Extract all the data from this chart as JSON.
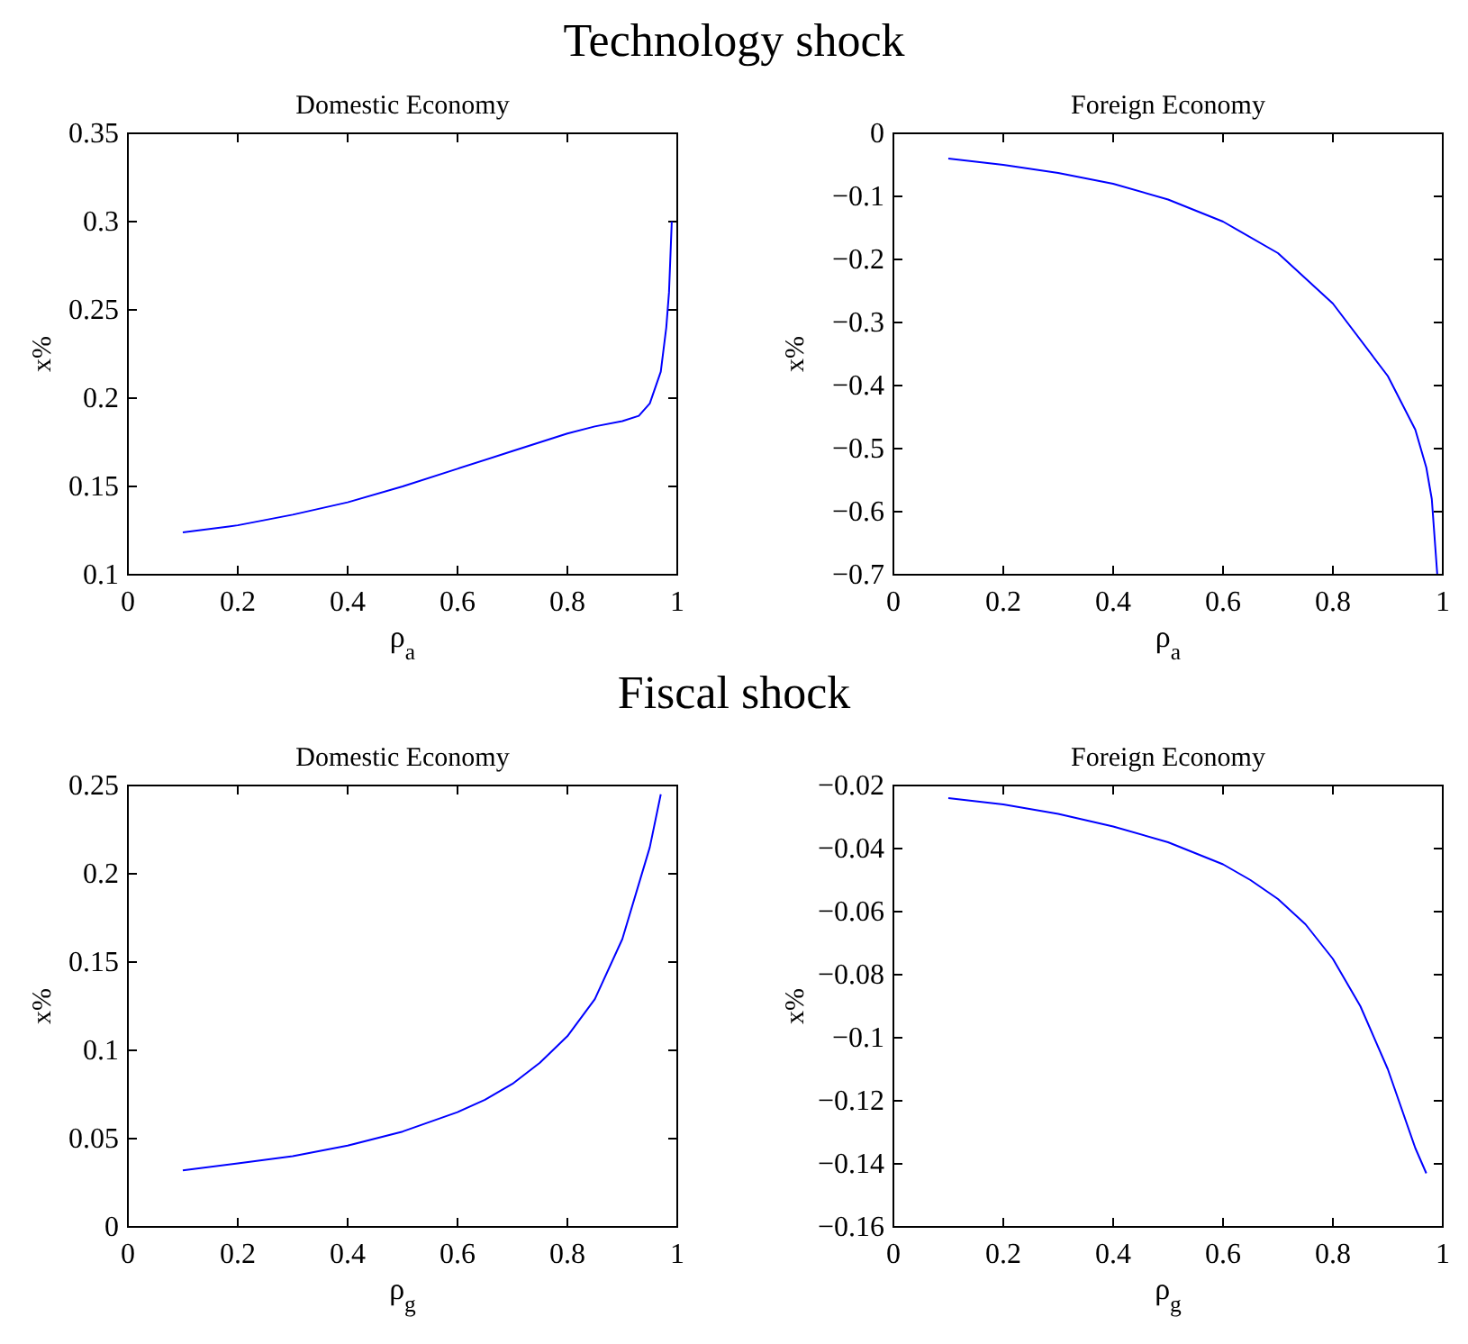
{
  "chart_data": [
    {
      "type": "line",
      "title": "Domestic Economy",
      "annotations": [
        "Technology shock"
      ],
      "xlabel": "ρ$_{a}$",
      "ylabel": "x%",
      "xlim": [
        0,
        1
      ],
      "ylim": [
        0.1,
        0.35
      ],
      "xticks": [
        0,
        0.2,
        0.4,
        0.6,
        0.8,
        1
      ],
      "yticks": [
        0.1,
        0.15,
        0.2,
        0.25,
        0.3,
        0.35
      ],
      "grid": false,
      "series": [
        {
          "color": "#0000ff",
          "x": [
            0.1,
            0.2,
            0.3,
            0.4,
            0.5,
            0.6,
            0.7,
            0.8,
            0.85,
            0.9,
            0.93,
            0.95,
            0.97,
            0.98,
            0.985,
            0.99
          ],
          "values": [
            0.124,
            0.128,
            0.134,
            0.141,
            0.15,
            0.16,
            0.17,
            0.18,
            0.184,
            0.187,
            0.19,
            0.197,
            0.215,
            0.24,
            0.26,
            0.3
          ]
        }
      ]
    },
    {
      "type": "line",
      "title": "Foreign Economy",
      "xlabel": "ρ$_{a}$",
      "ylabel": "x%",
      "xlim": [
        0,
        1
      ],
      "ylim": [
        -0.7,
        0
      ],
      "xticks": [
        0,
        0.2,
        0.4,
        0.6,
        0.8,
        1
      ],
      "yticks": [
        -0.7,
        -0.6,
        -0.5,
        -0.4,
        -0.3,
        -0.2,
        -0.1,
        0
      ],
      "grid": false,
      "series": [
        {
          "color": "#0000ff",
          "x": [
            0.1,
            0.2,
            0.3,
            0.4,
            0.5,
            0.6,
            0.7,
            0.8,
            0.9,
            0.95,
            0.97,
            0.98,
            0.99
          ],
          "values": [
            -0.04,
            -0.05,
            -0.063,
            -0.08,
            -0.105,
            -0.14,
            -0.19,
            -0.27,
            -0.385,
            -0.47,
            -0.53,
            -0.58,
            -0.7
          ]
        }
      ]
    },
    {
      "type": "line",
      "title": "Domestic Economy",
      "annotations": [
        "Fiscal shock"
      ],
      "xlabel": "ρ$_{g}$",
      "ylabel": "x%",
      "xlim": [
        0,
        1
      ],
      "ylim": [
        0,
        0.25
      ],
      "xticks": [
        0,
        0.2,
        0.4,
        0.6,
        0.8,
        1
      ],
      "yticks": [
        0,
        0.05,
        0.1,
        0.15,
        0.2,
        0.25
      ],
      "grid": false,
      "series": [
        {
          "color": "#0000ff",
          "x": [
            0.1,
            0.2,
            0.3,
            0.4,
            0.5,
            0.6,
            0.65,
            0.7,
            0.75,
            0.8,
            0.85,
            0.9,
            0.95,
            0.97
          ],
          "values": [
            0.032,
            0.036,
            0.04,
            0.046,
            0.054,
            0.065,
            0.072,
            0.081,
            0.093,
            0.108,
            0.129,
            0.163,
            0.215,
            0.245
          ]
        }
      ]
    },
    {
      "type": "line",
      "title": "Foreign Economy",
      "xlabel": "ρ$_{g}$",
      "ylabel": "x%",
      "xlim": [
        0,
        1
      ],
      "ylim": [
        -0.16,
        -0.02
      ],
      "xticks": [
        0,
        0.2,
        0.4,
        0.6,
        0.8,
        1
      ],
      "yticks": [
        -0.16,
        -0.14,
        -0.12,
        -0.1,
        -0.08,
        -0.06,
        -0.04,
        -0.02
      ],
      "grid": false,
      "series": [
        {
          "color": "#0000ff",
          "x": [
            0.1,
            0.2,
            0.3,
            0.4,
            0.5,
            0.6,
            0.65,
            0.7,
            0.75,
            0.8,
            0.85,
            0.9,
            0.95,
            0.97
          ],
          "values": [
            -0.024,
            -0.026,
            -0.029,
            -0.033,
            -0.038,
            -0.045,
            -0.05,
            -0.056,
            -0.064,
            -0.075,
            -0.09,
            -0.11,
            -0.135,
            -0.143
          ]
        }
      ]
    }
  ]
}
